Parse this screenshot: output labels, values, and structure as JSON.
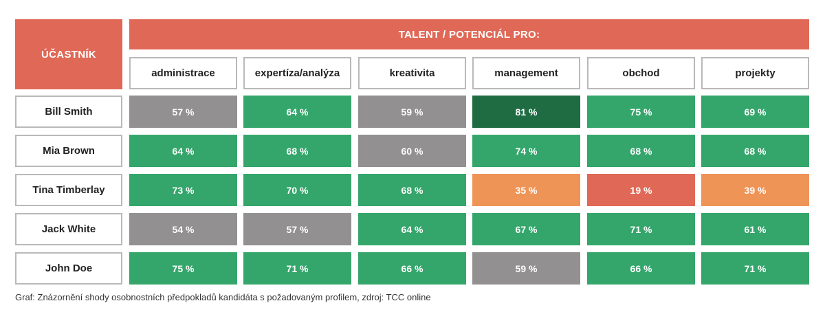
{
  "header": {
    "participant_label": "ÚČASTNÍK",
    "talent_label": "TALENT / POTENCIÁL PRO:"
  },
  "colors": {
    "header": "#e06856",
    "high": "#34a66b",
    "very_high": "#1f6b42",
    "neutral": "#929090",
    "medium_low": "#ef9457",
    "low": "#e06856"
  },
  "chart_data": {
    "type": "table",
    "columns": [
      "administrace",
      "expertíza/analýza",
      "kreativita",
      "management",
      "obchod",
      "projekty"
    ],
    "rows": [
      "Bill Smith",
      "Mia Brown",
      "Tina Timberlay",
      "Jack White",
      "John Doe"
    ],
    "values": [
      [
        57,
        64,
        59,
        81,
        75,
        69
      ],
      [
        64,
        68,
        60,
        74,
        68,
        68
      ],
      [
        73,
        70,
        68,
        35,
        19,
        39
      ],
      [
        54,
        57,
        64,
        67,
        71,
        61
      ],
      [
        75,
        71,
        66,
        59,
        66,
        71
      ]
    ],
    "cell_labels": [
      [
        "57 %",
        "64 %",
        "59 %",
        "81 %",
        "75 %",
        "69 %"
      ],
      [
        "64 %",
        "68 %",
        "60 %",
        "74 %",
        "68 %",
        "68 %"
      ],
      [
        "73 %",
        "70 %",
        "68 %",
        "35 %",
        "19 %",
        "39 %"
      ],
      [
        "54 %",
        "57 %",
        "64 %",
        "67 %",
        "71 %",
        "61 %"
      ],
      [
        "75 %",
        "71 %",
        "66 %",
        "59 %",
        "66 %",
        "71 %"
      ]
    ],
    "cell_colors": [
      [
        "neutral",
        "high",
        "neutral",
        "very_high",
        "high",
        "high"
      ],
      [
        "high",
        "high",
        "neutral",
        "high",
        "high",
        "high"
      ],
      [
        "high",
        "high",
        "high",
        "medium_low",
        "low",
        "medium_low"
      ],
      [
        "neutral",
        "neutral",
        "high",
        "high",
        "high",
        "high"
      ],
      [
        "high",
        "high",
        "high",
        "neutral",
        "high",
        "high"
      ]
    ]
  },
  "caption": "Graf: Znázornění shody osobnostních předpokladů kandidáta s požadovaným profilem, zdroj: TCC online"
}
